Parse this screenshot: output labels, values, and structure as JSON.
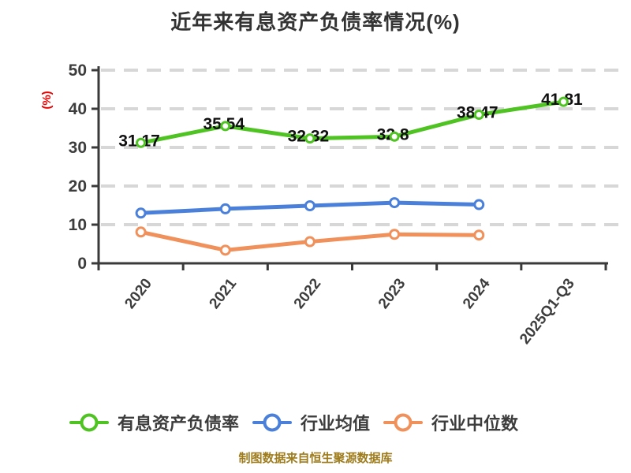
{
  "title": "近年来有息资产负债率情况(%)",
  "footer": "制图数据来自恒生聚源数据库",
  "colors": {
    "title_text": "#333333",
    "axis": "#3a3a3a",
    "grid": "#d7d7d7",
    "tick_text": "#3d3d3d",
    "point_label_text": "#111111",
    "ylabel_red": "#ee0000",
    "footer_gold": "#9e7c1c",
    "series_green": "#4ec322",
    "series_blue": "#4a80d9",
    "series_orange": "#f0905a"
  },
  "legend": {
    "items": [
      {
        "label": "有息资产负债率"
      },
      {
        "label": "行业均值"
      },
      {
        "label": "行业中位数"
      }
    ]
  },
  "chart_data": {
    "type": "line",
    "title": "近年来有息资产负债率情况(%)",
    "ylabel": "(%)",
    "xlabel": "",
    "categories": [
      "2020",
      "2021",
      "2022",
      "2023",
      "2024",
      "2025Q1-Q3"
    ],
    "yticks": [
      0,
      10,
      20,
      30,
      40,
      50
    ],
    "ylim": [
      0,
      50
    ],
    "grid": "horizontal-dashed",
    "legend_position": "bottom",
    "series": [
      {
        "name": "有息资产负债率",
        "color": "#4ec322",
        "values": [
          31.17,
          35.54,
          32.32,
          32.8,
          38.47,
          41.81
        ],
        "point_labels": [
          "31.17",
          "35.54",
          "32.32",
          "32.8",
          "38.47",
          "41.81"
        ]
      },
      {
        "name": "行业均值",
        "color": "#4a80d9",
        "values": [
          13.0,
          14.1,
          14.9,
          15.7,
          15.2
        ]
      },
      {
        "name": "行业中位数",
        "color": "#f0905a",
        "values": [
          8.1,
          3.4,
          5.6,
          7.5,
          7.3
        ]
      }
    ],
    "footer": "制图数据来自恒生聚源数据库"
  }
}
